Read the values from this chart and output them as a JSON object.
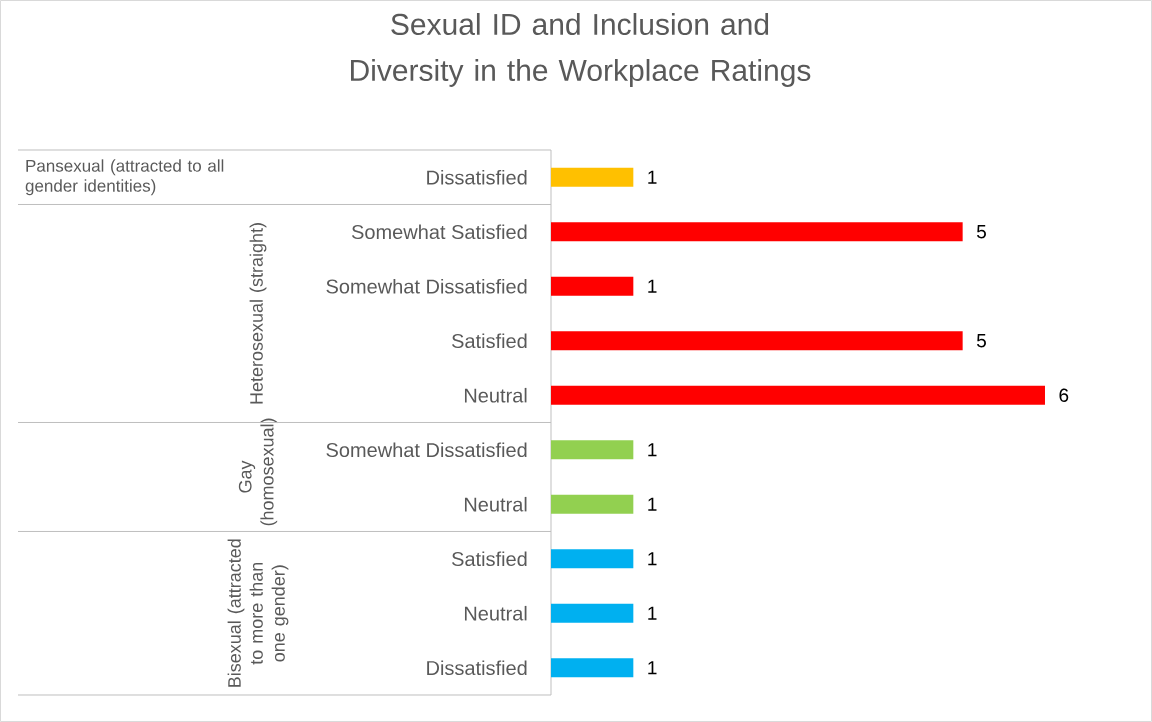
{
  "chart_data": {
    "type": "bar",
    "orientation": "horizontal",
    "title": "Sexual ID and Inclusion and Diversity in the Workplace Ratings",
    "categories": [
      "Dissatisfied",
      "Somewhat Satisfied",
      "Somewhat Dissatisfied",
      "Satisfied",
      "Neutral",
      "Somewhat Dissatisfied",
      "Neutral",
      "Satisfied",
      "Neutral",
      "Dissatisfied"
    ],
    "series": [
      {
        "color": "#ffc000",
        "values": [
          1,
          null,
          null,
          null,
          null,
          null,
          null,
          null,
          null,
          null
        ]
      },
      {
        "color": "#ff0000",
        "values": [
          null,
          5,
          1,
          5,
          6,
          null,
          null,
          null,
          null,
          null
        ]
      },
      {
        "color": "#92d050",
        "values": [
          null,
          null,
          null,
          null,
          null,
          1,
          1,
          null,
          null,
          null
        ]
      },
      {
        "color": "#00b0f0",
        "values": [
          null,
          null,
          null,
          null,
          null,
          null,
          null,
          1,
          1,
          1
        ]
      }
    ],
    "annotations": [
      "Pansexual (attracted to all gender identities)",
      "Heterosexual (straight)",
      "Gay (homosexual)",
      "Bisexual (attracted to more than one gender)"
    ],
    "data_labels": true
  }
}
